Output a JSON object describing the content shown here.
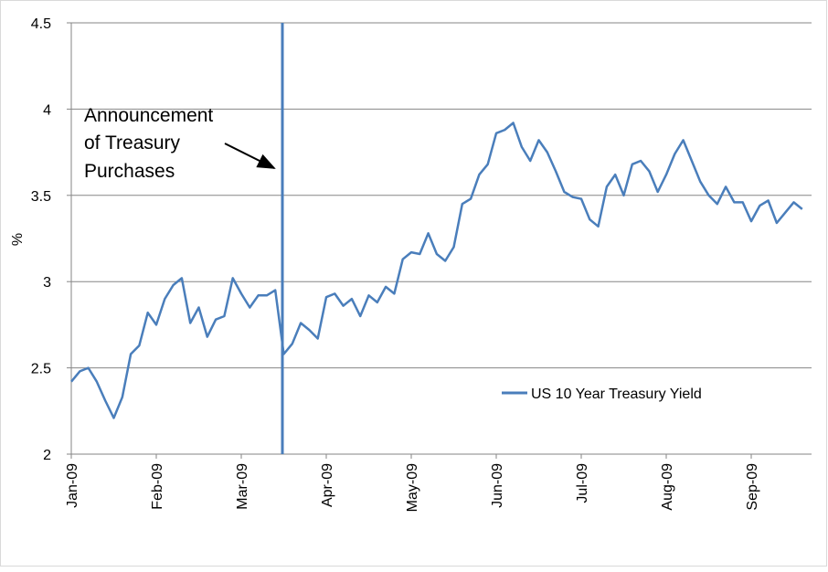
{
  "chart_data": {
    "type": "line",
    "y_label": "%",
    "annotation": [
      "Announcement",
      "of Treasury",
      "Purchases"
    ],
    "categories": [
      "Jan-09",
      null,
      null,
      null,
      null,
      null,
      null,
      null,
      null,
      null,
      "Feb-09",
      null,
      null,
      null,
      null,
      null,
      null,
      null,
      null,
      null,
      "Mar-09",
      null,
      null,
      null,
      null,
      null,
      null,
      null,
      null,
      null,
      "Apr-09",
      null,
      null,
      null,
      null,
      null,
      null,
      null,
      null,
      null,
      "May-09",
      null,
      null,
      null,
      null,
      null,
      null,
      null,
      null,
      null,
      "Jun-09",
      null,
      null,
      null,
      null,
      null,
      null,
      null,
      null,
      null,
      "Jul-09",
      null,
      null,
      null,
      null,
      null,
      null,
      null,
      null,
      null,
      "Aug-09",
      null,
      null,
      null,
      null,
      null,
      null,
      null,
      null,
      null,
      "Sep-09",
      null,
      null,
      null,
      null,
      null,
      null
    ],
    "series": [
      {
        "name": "US 10 Year Treasury Yield",
        "color": "#4a7ebb",
        "values": [
          2.42,
          2.48,
          2.5,
          2.42,
          2.31,
          2.21,
          2.33,
          2.58,
          2.63,
          2.82,
          2.75,
          2.9,
          2.98,
          3.02,
          2.76,
          2.85,
          2.68,
          2.78,
          2.8,
          3.02,
          2.93,
          2.85,
          2.92,
          2.92,
          2.95,
          2.58,
          2.64,
          2.76,
          2.72,
          2.67,
          2.91,
          2.93,
          2.86,
          2.9,
          2.8,
          2.92,
          2.88,
          2.97,
          2.93,
          3.13,
          3.17,
          3.16,
          3.28,
          3.16,
          3.12,
          3.2,
          3.45,
          3.48,
          3.62,
          3.68,
          3.86,
          3.88,
          3.92,
          3.78,
          3.7,
          3.82,
          3.75,
          3.64,
          3.52,
          3.49,
          3.48,
          3.36,
          3.32,
          3.55,
          3.62,
          3.5,
          3.68,
          3.7,
          3.64,
          3.52,
          3.62,
          3.74,
          3.82,
          3.7,
          3.58,
          3.5,
          3.45,
          3.55,
          3.46,
          3.46,
          3.35,
          3.44,
          3.47,
          3.34,
          3.4,
          3.46,
          3.42
        ]
      }
    ],
    "ylim": [
      2,
      4.5
    ],
    "yticks": [
      2,
      2.5,
      3,
      3.5,
      4,
      4.5
    ],
    "grid": true
  }
}
